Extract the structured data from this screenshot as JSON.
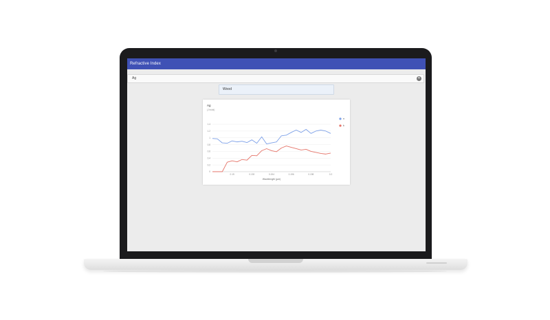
{
  "app": {
    "title": "Refractive Index"
  },
  "search": {
    "value": "Ag",
    "clear_icon": "close-circle-icon"
  },
  "suggestion": {
    "label": "Wood"
  },
  "chart_data": {
    "type": "line",
    "title": "Ag",
    "subtitle": "(Jindal)",
    "xlabel": "Wavelength (µm)",
    "ylabel": "",
    "xlim": [
      0.188,
      0.2
    ],
    "ylim": [
      0,
      1.4
    ],
    "x_ticks": [
      0.19,
      0.192,
      0.194,
      0.196,
      0.198,
      0.2
    ],
    "y_ticks": [
      0,
      0.2,
      0.4,
      0.6,
      0.8,
      1.0,
      1.2,
      1.4
    ],
    "x_tick_labels": [
      "0.19",
      "0.192",
      "0.194",
      "0.196",
      "0.198",
      "0.2"
    ],
    "y_tick_labels": [
      "0",
      "0.2",
      "0.4",
      "0.6",
      "0.8",
      "1",
      "1.2",
      "1.4"
    ],
    "grid": true,
    "legend_position": "right",
    "series": [
      {
        "name": "n",
        "color": "#7b9fe8",
        "x": [
          0.188,
          0.1885,
          0.189,
          0.1895,
          0.19,
          0.1905,
          0.191,
          0.1915,
          0.192,
          0.1925,
          0.193,
          0.1935,
          0.194,
          0.1945,
          0.195,
          0.1955,
          0.196,
          0.1965,
          0.197,
          0.1975,
          0.198,
          0.1985,
          0.199,
          0.1995,
          0.2
        ],
        "values": [
          0.98,
          0.97,
          0.85,
          0.84,
          0.91,
          0.88,
          0.9,
          0.86,
          0.94,
          0.84,
          1.03,
          0.82,
          0.85,
          0.88,
          1.06,
          1.08,
          1.16,
          1.23,
          1.16,
          1.25,
          1.13,
          1.2,
          1.23,
          1.2,
          1.13
        ]
      },
      {
        "name": "k",
        "color": "#e57368",
        "x": [
          0.188,
          0.1885,
          0.189,
          0.1895,
          0.19,
          0.1905,
          0.191,
          0.1915,
          0.192,
          0.1925,
          0.193,
          0.1935,
          0.194,
          0.1945,
          0.195,
          0.1955,
          0.196,
          0.1965,
          0.197,
          0.1975,
          0.198,
          0.1985,
          0.199,
          0.1995,
          0.2
        ],
        "values": [
          0.0,
          0.0,
          0.0,
          0.28,
          0.32,
          0.29,
          0.36,
          0.34,
          0.48,
          0.47,
          0.62,
          0.68,
          0.62,
          0.59,
          0.7,
          0.76,
          0.72,
          0.68,
          0.64,
          0.66,
          0.6,
          0.57,
          0.54,
          0.52,
          0.55
        ]
      }
    ]
  }
}
